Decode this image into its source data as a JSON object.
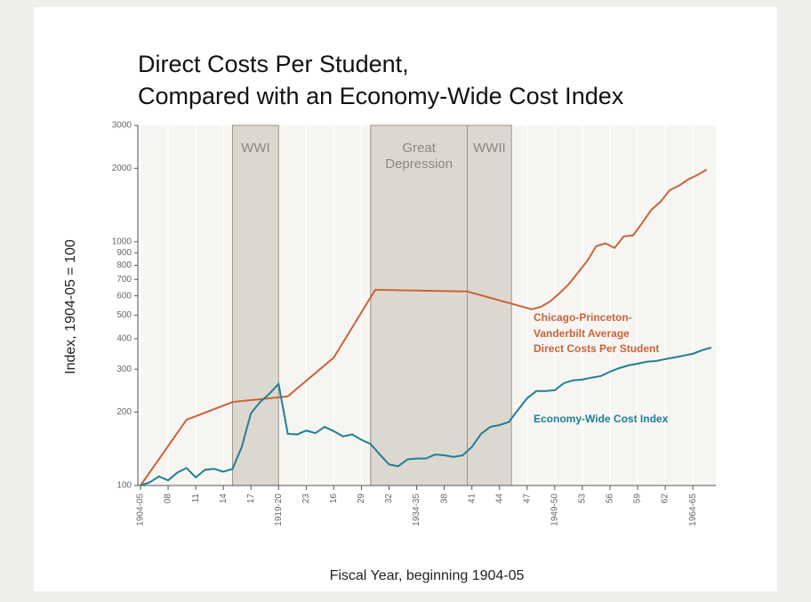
{
  "chart_data": {
    "type": "line",
    "title": [
      "Direct Costs Per Student,",
      "Compared with an Economy-Wide Cost Index"
    ],
    "x_label": "Fiscal Year, beginning 1904-05",
    "y_label": "Index, 1904-05 = 100",
    "log_y": true,
    "grid": true,
    "xlim": [
      1904,
      1966.5
    ],
    "ylim": [
      100,
      3000
    ],
    "yticks": [
      100,
      200,
      300,
      400,
      500,
      600,
      700,
      800,
      900,
      1000,
      2000,
      3000
    ],
    "xticks": [
      {
        "value": 1904,
        "label": "1904-05"
      },
      {
        "value": 1907,
        "label": "08"
      },
      {
        "value": 1910,
        "label": "11"
      },
      {
        "value": 1913,
        "label": "14"
      },
      {
        "value": 1916,
        "label": "17"
      },
      {
        "value": 1919,
        "label": "1919-20"
      },
      {
        "value": 1922,
        "label": "23"
      },
      {
        "value": 1925,
        "label": "16"
      },
      {
        "value": 1928,
        "label": "29"
      },
      {
        "value": 1931,
        "label": "32"
      },
      {
        "value": 1934,
        "label": "1934-35"
      },
      {
        "value": 1937,
        "label": "38"
      },
      {
        "value": 1940,
        "label": "41"
      },
      {
        "value": 1943,
        "label": "44"
      },
      {
        "value": 1946,
        "label": "47"
      },
      {
        "value": 1949,
        "label": "1949-50"
      },
      {
        "value": 1952,
        "label": "53"
      },
      {
        "value": 1955,
        "label": "56"
      },
      {
        "value": 1958,
        "label": "59"
      },
      {
        "value": 1961,
        "label": "62"
      },
      {
        "value": 1964,
        "label": "1964-65"
      }
    ],
    "shaded_regions": [
      {
        "label": [
          "WWI"
        ],
        "x": [
          1914,
          1919
        ]
      },
      {
        "label": [
          "Great",
          "Depression"
        ],
        "x": [
          1929,
          1939.5
        ]
      },
      {
        "label": [
          "WWII"
        ],
        "x": [
          1939.5,
          1944.3
        ]
      }
    ],
    "series": [
      {
        "name": [
          "Chicago-Princeton-",
          "Vanderbilt Average",
          "Direct Costs Per Student"
        ],
        "color": "#c8643a",
        "x": [
          1904,
          1909,
          1914,
          1920,
          1925,
          1929.5,
          1939.5,
          1946.5,
          1947.5,
          1948.5,
          1949.5,
          1950.5,
          1951.5,
          1952.5,
          1953.5,
          1954.5,
          1955.5,
          1956.5,
          1957.5,
          1958.5,
          1959.5,
          1960.5,
          1961.5,
          1962.5,
          1963.5,
          1964.5,
          1965.5
        ],
        "values": [
          100,
          186,
          220,
          232,
          335,
          635,
          625,
          528,
          541,
          569,
          614,
          668,
          745,
          831,
          959,
          984,
          943,
          1052,
          1061,
          1193,
          1353,
          1460,
          1628,
          1698,
          1801,
          1879,
          1976
        ]
      },
      {
        "name": [
          "Economy-Wide Cost Index"
        ],
        "color": "#1f7f95",
        "x": [
          1904,
          1905,
          1906,
          1907,
          1908,
          1909,
          1910,
          1911,
          1912,
          1913,
          1914,
          1915,
          1916,
          1917,
          1918,
          1919,
          1920,
          1921,
          1922,
          1923,
          1924,
          1925,
          1926,
          1927,
          1928,
          1929,
          1930,
          1931,
          1932,
          1933,
          1934,
          1935,
          1936,
          1937,
          1938,
          1939,
          1940,
          1941,
          1942,
          1943,
          1944,
          1945,
          1946,
          1947,
          1948,
          1949,
          1950,
          1951,
          1952,
          1953,
          1954,
          1955,
          1956,
          1957,
          1958,
          1959,
          1960,
          1961,
          1962,
          1963,
          1964,
          1965,
          1966
        ],
        "values": [
          100,
          103,
          109,
          105,
          113,
          118,
          108,
          116,
          117,
          114,
          117,
          144,
          198,
          220,
          238,
          261,
          163,
          162,
          168,
          164,
          174,
          167,
          159,
          162,
          154,
          148,
          134,
          122,
          120,
          128,
          129,
          129,
          134,
          133,
          131,
          133,
          144,
          163,
          174,
          177,
          182,
          204,
          228,
          244,
          244,
          246,
          263,
          270,
          272,
          277,
          281,
          293,
          303,
          311,
          316,
          322,
          324,
          330,
          335,
          341,
          347,
          359,
          368
        ]
      }
    ]
  }
}
